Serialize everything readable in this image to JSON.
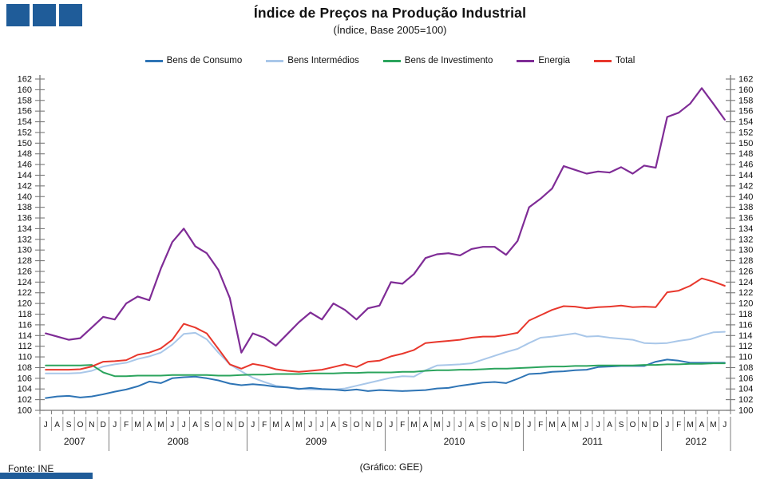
{
  "header": {
    "title": "Índice de Preços na Produção Industrial",
    "subtitle": "(Índice, Base 2005=100)"
  },
  "footer": {
    "source": "Fonte: INE",
    "credit": "(Gráfico: GEE)"
  },
  "brand_color": "#1F5C99",
  "chart_data": {
    "type": "line",
    "title": "Índice de Preços na Produção Industrial",
    "subtitle": "(Índice, Base 2005=100)",
    "ylim": [
      100,
      162
    ],
    "ytick_step": 2,
    "y_axis_both_sides": true,
    "grid": false,
    "legend_position": "top",
    "x_start": "2007-07",
    "x_end": "2012-06",
    "month_labels": [
      "J",
      "A",
      "S",
      "O",
      "N",
      "D",
      "J",
      "F",
      "M",
      "A",
      "M",
      "J",
      "J",
      "A",
      "S",
      "O",
      "N",
      "D",
      "J",
      "F",
      "M",
      "A",
      "M",
      "J",
      "J",
      "A",
      "S",
      "O",
      "N",
      "D",
      "J",
      "F",
      "M",
      "A",
      "M",
      "J",
      "J",
      "A",
      "S",
      "O",
      "N",
      "D",
      "J",
      "F",
      "M",
      "A",
      "M",
      "J",
      "J",
      "A",
      "S",
      "O",
      "N",
      "D",
      "J",
      "F",
      "M",
      "A",
      "M",
      "J"
    ],
    "years": [
      {
        "label": "2007",
        "months": 6
      },
      {
        "label": "2008",
        "months": 12
      },
      {
        "label": "2009",
        "months": 12
      },
      {
        "label": "2010",
        "months": 12
      },
      {
        "label": "2011",
        "months": 12
      },
      {
        "label": "2012",
        "months": 6
      }
    ],
    "axis_color": "#777777",
    "series": [
      {
        "name": "Bens de Consumo",
        "color": "#2E74B5",
        "width": 2,
        "values": [
          102.3,
          102.6,
          102.7,
          102.4,
          102.6,
          103.0,
          103.5,
          103.9,
          104.5,
          105.4,
          105.1,
          106.0,
          106.2,
          106.3,
          106.0,
          105.6,
          105.0,
          104.7,
          104.9,
          104.7,
          104.4,
          104.3,
          104.0,
          104.2,
          104.0,
          103.9,
          103.7,
          103.9,
          103.6,
          103.8,
          103.7,
          103.6,
          103.7,
          103.8,
          104.1,
          104.2,
          104.6,
          104.9,
          105.2,
          105.3,
          105.1,
          105.9,
          106.8,
          106.9,
          107.2,
          107.3,
          107.5,
          107.6,
          108.1,
          108.2,
          108.3,
          108.3,
          108.3,
          109.1,
          109.5,
          109.3,
          108.9,
          108.9,
          108.9,
          108.9
        ]
      },
      {
        "name": "Bens Intermédios",
        "color": "#A9C7E9",
        "width": 2,
        "values": [
          106.9,
          106.9,
          106.9,
          107.0,
          107.4,
          108.2,
          108.6,
          108.9,
          109.6,
          110.1,
          110.8,
          112.3,
          114.3,
          114.5,
          113.3,
          110.8,
          108.6,
          107.3,
          106.1,
          105.3,
          104.6,
          104.3,
          104.1,
          103.9,
          103.9,
          103.9,
          104.1,
          104.6,
          105.1,
          105.6,
          106.1,
          106.4,
          106.3,
          107.5,
          108.4,
          108.5,
          108.6,
          108.8,
          109.5,
          110.2,
          110.9,
          111.5,
          112.6,
          113.6,
          113.8,
          114.1,
          114.4,
          113.8,
          113.9,
          113.6,
          113.4,
          113.2,
          112.6,
          112.5,
          112.6,
          113.0,
          113.3,
          114.0,
          114.6,
          114.7
        ]
      },
      {
        "name": "Bens de Investimento",
        "color": "#2BA45D",
        "width": 2,
        "values": [
          108.4,
          108.4,
          108.4,
          108.4,
          108.5,
          107.1,
          106.4,
          106.4,
          106.5,
          106.5,
          106.5,
          106.6,
          106.6,
          106.6,
          106.6,
          106.5,
          106.5,
          106.6,
          106.7,
          106.7,
          106.8,
          106.8,
          106.8,
          106.9,
          106.9,
          106.9,
          107.0,
          107.0,
          107.1,
          107.1,
          107.1,
          107.2,
          107.2,
          107.4,
          107.5,
          107.5,
          107.6,
          107.6,
          107.7,
          107.8,
          107.8,
          107.9,
          108.0,
          108.1,
          108.2,
          108.2,
          108.3,
          108.3,
          108.4,
          108.4,
          108.4,
          108.4,
          108.5,
          108.5,
          108.6,
          108.6,
          108.7,
          108.7,
          108.8,
          108.8
        ]
      },
      {
        "name": "Energia",
        "color": "#7F2C96",
        "width": 2.2,
        "values": [
          114.4,
          113.8,
          113.2,
          113.5,
          115.5,
          117.5,
          117.0,
          120.0,
          121.3,
          120.6,
          126.5,
          131.5,
          134.0,
          130.7,
          129.4,
          126.3,
          121.0,
          110.8,
          114.4,
          113.6,
          112.1,
          114.3,
          116.5,
          118.3,
          117.0,
          120.0,
          118.8,
          117.0,
          119.1,
          119.6,
          124.0,
          123.7,
          125.5,
          128.5,
          129.2,
          129.4,
          129.0,
          130.2,
          130.6,
          130.6,
          129.1,
          131.7,
          138.0,
          139.6,
          141.5,
          145.7,
          145.0,
          144.3,
          144.7,
          144.5,
          145.5,
          144.3,
          145.8,
          145.4,
          154.9,
          155.7,
          157.4,
          160.3,
          157.4,
          154.4
        ]
      },
      {
        "name": "Total",
        "color": "#E8372C",
        "width": 2,
        "values": [
          107.6,
          107.6,
          107.6,
          107.7,
          108.2,
          109.1,
          109.2,
          109.4,
          110.4,
          110.8,
          111.6,
          113.2,
          116.2,
          115.5,
          114.4,
          111.5,
          108.6,
          107.8,
          108.7,
          108.3,
          107.7,
          107.4,
          107.2,
          107.4,
          107.6,
          108.1,
          108.6,
          108.1,
          109.1,
          109.3,
          110.1,
          110.6,
          111.3,
          112.6,
          112.8,
          113.0,
          113.2,
          113.6,
          113.8,
          113.8,
          114.1,
          114.5,
          116.8,
          117.8,
          118.8,
          119.5,
          119.4,
          119.1,
          119.3,
          119.4,
          119.6,
          119.3,
          119.4,
          119.3,
          122.1,
          122.4,
          123.3,
          124.7,
          124.1,
          123.3
        ]
      }
    ]
  }
}
